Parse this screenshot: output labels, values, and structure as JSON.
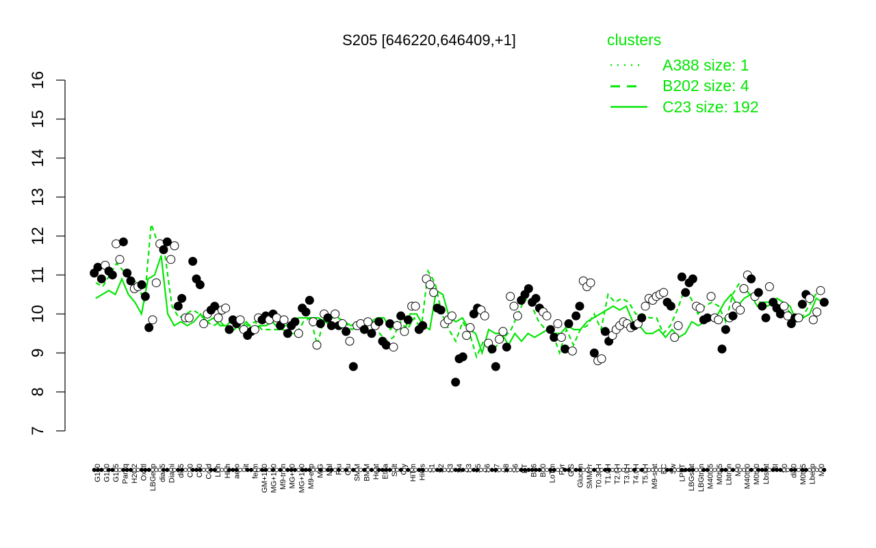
{
  "chart_data": {
    "type": "scatter",
    "title": "S205 [646220,646409,+1]",
    "xlabel": "",
    "ylabel": "",
    "ylim": [
      7,
      16
    ],
    "yticks": [
      7,
      8,
      9,
      10,
      11,
      12,
      13,
      14,
      15,
      16
    ],
    "grid": false,
    "legend": {
      "title": "clusters",
      "placement": "top-right",
      "entries": [
        {
          "label": "A388 size: 1",
          "style": "dotted"
        },
        {
          "label": "B202 size: 4",
          "style": "dashed"
        },
        {
          "label": "C23 size: 192",
          "style": "solid"
        }
      ]
    },
    "colors": {
      "lines": "#00e600",
      "legend_text": "#00e600",
      "filled_points": "#000000",
      "open_points": "#ffffff"
    },
    "x_labels": [
      "G150",
      "G180",
      "G135",
      "Paraq",
      "H2O2",
      "Oxctl",
      "LBGexp",
      "dia15",
      "Diami",
      "dia5",
      "C90",
      "C30",
      "Cold",
      "LPh",
      "HPh",
      "aero",
      "nit",
      "ferm",
      "GM+150",
      "MG+150",
      "M9-tran",
      "MG+90",
      "MG+120",
      "MG+60",
      "MG+45",
      "MG+25",
      "MG+15",
      "MG+10",
      "MG+5",
      "MG-0.2",
      "GM-0.2",
      "GM-0.1",
      "Glucon",
      "GM+10",
      "GM+25",
      "GM+45",
      "GM+60",
      "GM+90",
      "GM+120",
      "M9-exp",
      "M/G",
      "Mal",
      "Fru",
      "Glu",
      "SMM",
      "BMM",
      "Heat",
      "Etha",
      "Salt",
      "Gly",
      "HiOs",
      "HiTm",
      "S1",
      "S2",
      "S3",
      "S4",
      "S5",
      "S6",
      "S7",
      "S8",
      "BT",
      "B36",
      "B60",
      "LoTm",
      "Pyr",
      "G/S",
      "Glucon2",
      "SMMPr",
      "T-5.40H",
      "T-4.40H",
      "T-3.40H",
      "T-2.40H",
      "T-1.40H",
      "T-0.40H",
      "T0.0H",
      "T0.30H",
      "T1.0H",
      "T1.30H",
      "T2.0H",
      "T3.0H",
      "T4.0H",
      "T5.0H",
      "M9-stat",
      "BC",
      "Sw",
      "LPhT",
      "LBGstat",
      "LBGtran",
      "M40t45",
      "M0t45",
      "Lbtran",
      "Mt0",
      "M40t90",
      "M0t90",
      "Lbstat",
      "BI",
      "S0",
      "dia0",
      "M0t45b",
      "Lbexp",
      "Mt0b"
    ],
    "x_labels_shown": [
      "G150",
      "G180",
      "G135",
      "Paraq",
      "H2O2",
      "Oxctl",
      "LBGexp",
      "dia15",
      "Diami",
      "dia5",
      "C90",
      "C30",
      "Cold",
      "LPh",
      "HPh",
      "aero",
      "nit",
      "ferm",
      "GM+150",
      "MG+150",
      "M9-tran",
      "MG+90",
      "MG+120",
      "M9-exp",
      "M/G",
      "Mal",
      "Fru",
      "Glu",
      "SMM",
      "BMM",
      "Heat",
      "Etha",
      "Salt",
      "Gly",
      "HiTm",
      "HiOs",
      "S1",
      "S2",
      "S3",
      "S4",
      "S3",
      "S5",
      "S6",
      "S7",
      "S8",
      "S6",
      "BT",
      "B36",
      "B60",
      "LoTm",
      "Pyr",
      "G/S",
      "Glucon",
      "SMMPr",
      "T0.30H",
      "T1.0H",
      "T2.0H",
      "T3.0H",
      "T4.0H",
      "T5.0H",
      "M9-stat",
      "BC",
      "Sw",
      "LPhT",
      "LBGstat",
      "LBGtran",
      "M40t45",
      "M0t45",
      "Lbtran",
      "Mt0",
      "M40t90",
      "M0t90",
      "Lbstat",
      "BI",
      "S0",
      "dia0",
      "M0t45",
      "Lbexp",
      "Mt0"
    ],
    "series": [
      {
        "name": "C23 size: 192",
        "style": "solid",
        "values": [
          10.4,
          10.5,
          10.6,
          10.5,
          10.9,
          10.5,
          10.3,
          10.0,
          10.9,
          11.0,
          11.5,
          10.0,
          9.7,
          9.8,
          9.7,
          9.8,
          10.0,
          9.8,
          9.9,
          9.7,
          9.7,
          9.9,
          9.6,
          9.8,
          9.6,
          9.7,
          9.7,
          9.8,
          9.6,
          9.7,
          9.8,
          9.9,
          9.9,
          9.9,
          9.9,
          9.8,
          9.7,
          9.7,
          9.8,
          9.7,
          9.8,
          9.7,
          9.8,
          9.9,
          9.9,
          9.6,
          9.8,
          9.5,
          10.0,
          10.0,
          9.7,
          9.6,
          10.6,
          10.5,
          9.9,
          9.8,
          9.9,
          9.6,
          9.5,
          9.0,
          9.6,
          9.5,
          9.5,
          9.2,
          9.5,
          9.3,
          9.5,
          9.4,
          9.5,
          9.6,
          9.5,
          9.5,
          9.7,
          9.6,
          9.6,
          9.8,
          9.9,
          10.0,
          10.1,
          10.2,
          10.1,
          10.2,
          9.8,
          9.7,
          9.5,
          9.5,
          9.6,
          9.4,
          9.6,
          9.4,
          9.5,
          9.8,
          9.7,
          9.8,
          9.9,
          10.0,
          10.3,
          10.5,
          10.2,
          10.4,
          10.5,
          10.2,
          10.3,
          10.3,
          10.4,
          10.3,
          10.2,
          9.8,
          9.9,
          10.0,
          10.4,
          10.3
        ]
      },
      {
        "name": "B202 size: 4",
        "style": "dashed",
        "values": [
          10.8,
          10.7,
          11.0,
          11.3,
          11.1,
          10.9,
          10.8,
          10.3,
          12.3,
          11.8,
          11.5,
          10.2,
          9.9,
          10.0,
          10.1,
          10.0,
          9.8,
          9.7,
          9.8,
          9.6,
          9.6,
          9.8,
          9.7,
          9.8,
          9.6,
          9.6,
          9.6,
          9.6,
          9.5,
          9.5,
          9.8,
          9.9,
          9.2,
          9.9,
          9.9,
          9.9,
          9.8,
          9.6,
          9.7,
          9.6,
          9.8,
          9.5,
          9.3,
          9.4,
          9.8,
          9.6,
          9.9,
          9.6,
          11.1,
          10.8,
          10.0,
          9.6,
          9.3,
          9.8,
          9.5,
          8.9,
          9.3,
          9.0,
          9.2,
          9.4,
          9.6,
          10.0,
          10.4,
          10.2,
          9.8,
          9.6,
          9.5,
          9.0,
          9.6,
          9.2,
          9.6,
          9.7,
          10.0,
          9.6,
          10.5,
          10.3,
          10.4,
          10.3,
          10.0,
          10.0,
          9.9,
          9.9,
          9.5,
          9.7,
          10.1,
          10.6,
          10.4,
          10.0,
          10.2,
          10.3,
          10.2,
          9.8,
          10.5,
          10.8,
          10.6,
          10.4,
          10.3,
          10.2,
          10.3,
          10.2,
          10.1,
          9.9,
          9.9,
          10.2,
          10.5,
          10.6
        ]
      },
      {
        "name": "A388 size: 1",
        "style": "dotted",
        "values": []
      }
    ],
    "points": [
      {
        "v": 11.05,
        "f": 1
      },
      {
        "v": 11.2,
        "f": 1
      },
      {
        "v": 10.9,
        "f": 1
      },
      {
        "v": 11.25,
        "f": 0
      },
      {
        "v": 11.1,
        "f": 1
      },
      {
        "v": 11.0,
        "f": 1
      },
      {
        "v": 11.8,
        "f": 0
      },
      {
        "v": 11.4,
        "f": 0
      },
      {
        "v": 11.85,
        "f": 1
      },
      {
        "v": 11.05,
        "f": 1
      },
      {
        "v": 10.85,
        "f": 1
      },
      {
        "v": 10.65,
        "f": 0
      },
      {
        "v": 10.7,
        "f": 0
      },
      {
        "v": 10.75,
        "f": 1
      },
      {
        "v": 10.45,
        "f": 1
      },
      {
        "v": 9.65,
        "f": 1
      },
      {
        "v": 9.85,
        "f": 0
      },
      {
        "v": 10.8,
        "f": 0
      },
      {
        "v": 11.8,
        "f": 0
      },
      {
        "v": 11.65,
        "f": 1
      },
      {
        "v": 11.85,
        "f": 1
      },
      {
        "v": 11.4,
        "f": 0
      },
      {
        "v": 11.75,
        "f": 0
      },
      {
        "v": 10.2,
        "f": 1
      },
      {
        "v": 10.4,
        "f": 1
      },
      {
        "v": 9.9,
        "f": 0
      },
      {
        "v": 9.9,
        "f": 0
      },
      {
        "v": 11.35,
        "f": 1
      },
      {
        "v": 10.9,
        "f": 1
      },
      {
        "v": 10.75,
        "f": 1
      },
      {
        "v": 9.75,
        "f": 0
      },
      {
        "v": 10.0,
        "f": 0
      },
      {
        "v": 10.1,
        "f": 1
      },
      {
        "v": 10.2,
        "f": 1
      },
      {
        "v": 9.9,
        "f": 0
      },
      {
        "v": 10.1,
        "f": 0
      },
      {
        "v": 10.15,
        "f": 0
      },
      {
        "v": 9.6,
        "f": 1
      },
      {
        "v": 9.85,
        "f": 1
      },
      {
        "v": 9.75,
        "f": 1
      },
      {
        "v": 9.85,
        "f": 0
      },
      {
        "v": 9.6,
        "f": 0
      },
      {
        "v": 9.45,
        "f": 1
      },
      {
        "v": 9.55,
        "f": 1
      },
      {
        "v": 9.6,
        "f": 0
      },
      {
        "v": 9.9,
        "f": 0
      },
      {
        "v": 9.85,
        "f": 1
      },
      {
        "v": 9.95,
        "f": 1
      },
      {
        "v": 9.85,
        "f": 0
      },
      {
        "v": 10.0,
        "f": 1
      },
      {
        "v": 9.9,
        "f": 0
      },
      {
        "v": 9.7,
        "f": 1
      },
      {
        "v": 9.85,
        "f": 0
      },
      {
        "v": 9.5,
        "f": 1
      },
      {
        "v": 9.7,
        "f": 1
      },
      {
        "v": 9.8,
        "f": 1
      },
      {
        "v": 9.5,
        "f": 0
      },
      {
        "v": 10.15,
        "f": 1
      },
      {
        "v": 10.05,
        "f": 1
      },
      {
        "v": 10.35,
        "f": 1
      },
      {
        "v": 9.8,
        "f": 0
      },
      {
        "v": 9.2,
        "f": 0
      },
      {
        "v": 9.75,
        "f": 1
      },
      {
        "v": 10.0,
        "f": 0
      },
      {
        "v": 9.9,
        "f": 1
      },
      {
        "v": 9.7,
        "f": 1
      },
      {
        "v": 10.0,
        "f": 0
      },
      {
        "v": 9.7,
        "f": 1
      },
      {
        "v": 9.75,
        "f": 0
      },
      {
        "v": 9.55,
        "f": 1
      },
      {
        "v": 9.3,
        "f": 0
      },
      {
        "v": 8.65,
        "f": 1
      },
      {
        "v": 9.7,
        "f": 0
      },
      {
        "v": 9.75,
        "f": 0
      },
      {
        "v": 9.6,
        "f": 1
      },
      {
        "v": 9.8,
        "f": 0
      },
      {
        "v": 9.5,
        "f": 1
      },
      {
        "v": 9.7,
        "f": 0
      },
      {
        "v": 9.8,
        "f": 1
      },
      {
        "v": 9.3,
        "f": 1
      },
      {
        "v": 9.2,
        "f": 1
      },
      {
        "v": 9.75,
        "f": 1
      },
      {
        "v": 9.15,
        "f": 0
      },
      {
        "v": 9.7,
        "f": 0
      },
      {
        "v": 9.95,
        "f": 1
      },
      {
        "v": 9.55,
        "f": 0
      },
      {
        "v": 9.85,
        "f": 1
      },
      {
        "v": 10.2,
        "f": 0
      },
      {
        "v": 10.2,
        "f": 0
      },
      {
        "v": 9.6,
        "f": 1
      },
      {
        "v": 9.7,
        "f": 1
      },
      {
        "v": 10.9,
        "f": 0
      },
      {
        "v": 10.75,
        "f": 0
      },
      {
        "v": 10.55,
        "f": 0
      },
      {
        "v": 10.15,
        "f": 1
      },
      {
        "v": 10.1,
        "f": 1
      },
      {
        "v": 9.75,
        "f": 0
      },
      {
        "v": 9.85,
        "f": 0
      },
      {
        "v": 9.95,
        "f": 0
      },
      {
        "v": 8.25,
        "f": 1
      },
      {
        "v": 8.85,
        "f": 1
      },
      {
        "v": 8.9,
        "f": 1
      },
      {
        "v": 9.45,
        "f": 0
      },
      {
        "v": 9.65,
        "f": 0
      },
      {
        "v": 10.0,
        "f": 1
      },
      {
        "v": 10.15,
        "f": 1
      },
      {
        "v": 10.1,
        "f": 0
      },
      {
        "v": 9.95,
        "f": 0
      },
      {
        "v": 9.25,
        "f": 0
      },
      {
        "v": 9.1,
        "f": 1
      },
      {
        "v": 8.65,
        "f": 1
      },
      {
        "v": 9.35,
        "f": 0
      },
      {
        "v": 9.55,
        "f": 0
      },
      {
        "v": 9.15,
        "f": 1
      },
      {
        "v": 10.45,
        "f": 0
      },
      {
        "v": 10.2,
        "f": 0
      },
      {
        "v": 9.95,
        "f": 0
      },
      {
        "v": 10.35,
        "f": 1
      },
      {
        "v": 10.5,
        "f": 1
      },
      {
        "v": 10.65,
        "f": 1
      },
      {
        "v": 10.3,
        "f": 1
      },
      {
        "v": 10.4,
        "f": 1
      },
      {
        "v": 10.15,
        "f": 1
      },
      {
        "v": 10.05,
        "f": 0
      },
      {
        "v": 9.95,
        "f": 0
      },
      {
        "v": 9.6,
        "f": 1
      },
      {
        "v": 9.4,
        "f": 1
      },
      {
        "v": 9.75,
        "f": 0
      },
      {
        "v": 9.4,
        "f": 0
      },
      {
        "v": 9.1,
        "f": 1
      },
      {
        "v": 9.75,
        "f": 1
      },
      {
        "v": 9.05,
        "f": 0
      },
      {
        "v": 9.95,
        "f": 1
      },
      {
        "v": 10.2,
        "f": 1
      },
      {
        "v": 10.85,
        "f": 0
      },
      {
        "v": 10.7,
        "f": 0
      },
      {
        "v": 10.8,
        "f": 0
      },
      {
        "v": 9.0,
        "f": 1
      },
      {
        "v": 8.8,
        "f": 0
      },
      {
        "v": 8.85,
        "f": 0
      },
      {
        "v": 9.55,
        "f": 1
      },
      {
        "v": 9.3,
        "f": 1
      },
      {
        "v": 9.45,
        "f": 0
      },
      {
        "v": 9.6,
        "f": 0
      },
      {
        "v": 9.7,
        "f": 0
      },
      {
        "v": 9.8,
        "f": 0
      },
      {
        "v": 9.75,
        "f": 0
      },
      {
        "v": 9.65,
        "f": 0
      },
      {
        "v": 9.7,
        "f": 1
      },
      {
        "v": 9.75,
        "f": 0
      },
      {
        "v": 9.9,
        "f": 1
      },
      {
        "v": 10.2,
        "f": 0
      },
      {
        "v": 10.4,
        "f": 0
      },
      {
        "v": 10.35,
        "f": 0
      },
      {
        "v": 10.45,
        "f": 0
      },
      {
        "v": 10.5,
        "f": 0
      },
      {
        "v": 10.55,
        "f": 0
      },
      {
        "v": 10.3,
        "f": 1
      },
      {
        "v": 10.2,
        "f": 1
      },
      {
        "v": 9.4,
        "f": 0
      },
      {
        "v": 9.7,
        "f": 0
      },
      {
        "v": 10.95,
        "f": 1
      },
      {
        "v": 10.55,
        "f": 1
      },
      {
        "v": 10.8,
        "f": 1
      },
      {
        "v": 10.9,
        "f": 1
      },
      {
        "v": 10.2,
        "f": 0
      },
      {
        "v": 10.15,
        "f": 0
      },
      {
        "v": 9.85,
        "f": 1
      },
      {
        "v": 9.9,
        "f": 1
      },
      {
        "v": 10.45,
        "f": 0
      },
      {
        "v": 9.9,
        "f": 0
      },
      {
        "v": 9.85,
        "f": 0
      },
      {
        "v": 9.1,
        "f": 1
      },
      {
        "v": 9.6,
        "f": 1
      },
      {
        "v": 9.9,
        "f": 0
      },
      {
        "v": 9.95,
        "f": 1
      },
      {
        "v": 10.2,
        "f": 0
      },
      {
        "v": 10.1,
        "f": 0
      },
      {
        "v": 10.65,
        "f": 0
      },
      {
        "v": 11.0,
        "f": 0
      },
      {
        "v": 10.9,
        "f": 1
      },
      {
        "v": 10.45,
        "f": 0
      },
      {
        "v": 10.55,
        "f": 1
      },
      {
        "v": 10.2,
        "f": 1
      },
      {
        "v": 9.9,
        "f": 1
      },
      {
        "v": 10.7,
        "f": 0
      },
      {
        "v": 10.3,
        "f": 1
      },
      {
        "v": 10.15,
        "f": 1
      },
      {
        "v": 10.0,
        "f": 1
      },
      {
        "v": 10.2,
        "f": 0
      },
      {
        "v": 9.95,
        "f": 0
      },
      {
        "v": 9.75,
        "f": 1
      },
      {
        "v": 9.9,
        "f": 1
      },
      {
        "v": 9.9,
        "f": 0
      },
      {
        "v": 10.25,
        "f": 1
      },
      {
        "v": 10.5,
        "f": 1
      },
      {
        "v": 10.4,
        "f": 0
      },
      {
        "v": 9.85,
        "f": 0
      },
      {
        "v": 10.05,
        "f": 0
      },
      {
        "v": 10.6,
        "f": 0
      },
      {
        "v": 10.3,
        "f": 1
      }
    ]
  }
}
